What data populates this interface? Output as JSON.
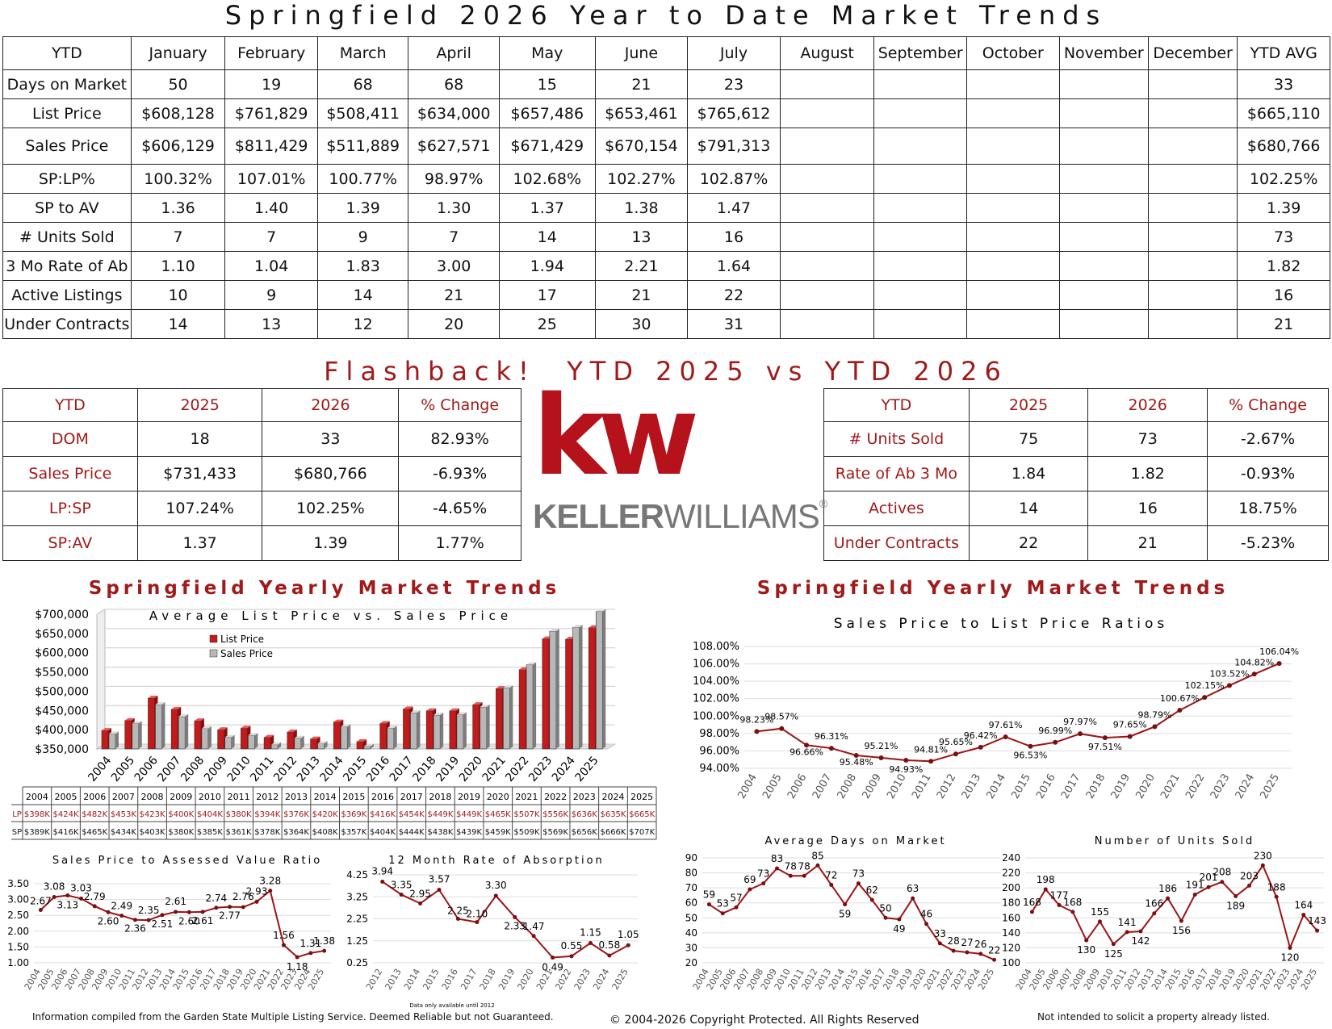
{
  "main_title": "Springfield 2026 Year to Date Market Trends",
  "ytd_table": {
    "header": [
      "YTD",
      "January",
      "February",
      "March",
      "April",
      "May",
      "June",
      "July",
      "August",
      "September",
      "October",
      "November",
      "December",
      "YTD AVG"
    ],
    "rows": [
      [
        "Days on Market",
        "50",
        "19",
        "68",
        "68",
        "15",
        "21",
        "23",
        "",
        "",
        "",
        "",
        "",
        "33"
      ],
      [
        "List Price",
        "$608,128",
        "$761,829",
        "$508,411",
        "$634,000",
        "$657,486",
        "$653,461",
        "$765,612",
        "",
        "",
        "",
        "",
        "",
        "$665,110"
      ],
      [
        "Sales Price",
        "$606,129",
        "$811,429",
        "$511,889",
        "$627,571",
        "$671,429",
        "$670,154",
        "$791,313",
        "",
        "",
        "",
        "",
        "",
        "$680,766"
      ],
      [
        "SP:LP%",
        "100.32%",
        "107.01%",
        "100.77%",
        "98.97%",
        "102.68%",
        "102.27%",
        "102.87%",
        "",
        "",
        "",
        "",
        "",
        "102.25%"
      ],
      [
        "SP to AV",
        "1.36",
        "1.40",
        "1.39",
        "1.30",
        "1.37",
        "1.38",
        "1.47",
        "",
        "",
        "",
        "",
        "",
        "1.39"
      ],
      [
        "# Units Sold",
        "7",
        "7",
        "9",
        "7",
        "14",
        "13",
        "16",
        "",
        "",
        "",
        "",
        "",
        "73"
      ],
      [
        "3 Mo Rate of Ab",
        "1.10",
        "1.04",
        "1.83",
        "3.00",
        "1.94",
        "2.21",
        "1.64",
        "",
        "",
        "",
        "",
        "",
        "1.82"
      ],
      [
        "Active Listings",
        "10",
        "9",
        "14",
        "21",
        "17",
        "21",
        "22",
        "",
        "",
        "",
        "",
        "",
        "16"
      ],
      [
        "Under Contracts",
        "14",
        "13",
        "12",
        "20",
        "25",
        "30",
        "31",
        "",
        "",
        "",
        "",
        "",
        "21"
      ]
    ]
  },
  "flashback_title": "Flashback!  YTD 2025 vs YTD 2026",
  "flash_left": {
    "header": [
      "YTD",
      "2025",
      "2026",
      "% Change"
    ],
    "rows": [
      [
        "DOM",
        "18",
        "33",
        "82.93%"
      ],
      [
        "Sales Price",
        "$731,433",
        "$680,766",
        "-6.93%"
      ],
      [
        "LP:SP",
        "107.24%",
        "102.25%",
        "-4.65%"
      ],
      [
        "SP:AV",
        "1.37",
        "1.39",
        "1.77%"
      ]
    ]
  },
  "flash_right": {
    "header": [
      "YTD",
      "2025",
      "2026",
      "% Change"
    ],
    "rows": [
      [
        "# Units Sold",
        "75",
        "73",
        "-2.67%"
      ],
      [
        "Rate of Ab 3 Mo",
        "1.84",
        "1.82",
        "-0.93%"
      ],
      [
        "Actives",
        "14",
        "16",
        "18.75%"
      ],
      [
        "Under Contracts",
        "22",
        "21",
        "-5.23%"
      ]
    ]
  },
  "logo": {
    "mark": "kw",
    "keller": "KELLER",
    "williams": "WILLIAMS",
    "reg": "®",
    "color": "#b5121b"
  },
  "colors": {
    "accent": "#a01a1a",
    "line": "#9b1515",
    "bar_gray": "#b0b0b0"
  },
  "chart_data": [
    {
      "type": "bar",
      "section_title": "Springfield Yearly Market Trends",
      "title": "Average List Price vs. Sales Price",
      "categories": [
        "2004",
        "2005",
        "2006",
        "2007",
        "2008",
        "2009",
        "2010",
        "2011",
        "2012",
        "2013",
        "2014",
        "2015",
        "2016",
        "2017",
        "2018",
        "2019",
        "2020",
        "2021",
        "2022",
        "2023",
        "2024",
        "2025"
      ],
      "series": [
        {
          "name": "List Price",
          "values": [
            398,
            424,
            482,
            453,
            423,
            400,
            404,
            380,
            394,
            376,
            420,
            369,
            416,
            454,
            449,
            449,
            465,
            507,
            556,
            636,
            635,
            665
          ]
        },
        {
          "name": "Sales Price",
          "values": [
            389,
            416,
            465,
            434,
            403,
            380,
            385,
            361,
            378,
            364,
            408,
            357,
            404,
            444,
            438,
            439,
            459,
            509,
            569,
            656,
            666,
            707
          ]
        }
      ],
      "yticks": [
        "$350,000",
        "$400,000",
        "$450,000",
        "$500,000",
        "$550,000",
        "$600,000",
        "$650,000",
        "$700,000"
      ],
      "ylim": [
        350,
        700
      ],
      "legend": "top-left",
      "table_rows": [
        {
          "label": "LP",
          "values": [
            "$398K",
            "$424K",
            "$482K",
            "$453K",
            "$423K",
            "$400K",
            "$404K",
            "$380K",
            "$394K",
            "$376K",
            "$420K",
            "$369K",
            "$416K",
            "$454K",
            "$449K",
            "$449K",
            "$465K",
            "$507K",
            "$556K",
            "$636K",
            "$635K",
            "$665K"
          ]
        },
        {
          "label": "SP",
          "values": [
            "$389K",
            "$416K",
            "$465K",
            "$434K",
            "$403K",
            "$380K",
            "$385K",
            "$361K",
            "$378K",
            "$364K",
            "$408K",
            "$357K",
            "$404K",
            "$444K",
            "$438K",
            "$439K",
            "$459K",
            "$509K",
            "$569K",
            "$656K",
            "$666K",
            "$707K"
          ]
        }
      ]
    },
    {
      "type": "line",
      "section_title": "Springfield Yearly Market Trends",
      "title": "Sales Price to List Price Ratios",
      "x": [
        "2004",
        "2005",
        "2006",
        "2007",
        "2008",
        "2009",
        "2010",
        "2011",
        "2012",
        "2013",
        "2014",
        "2015",
        "2016",
        "2017",
        "2018",
        "2019",
        "2020",
        "2021",
        "2022",
        "2023",
        "2024",
        "2025"
      ],
      "values": [
        98.23,
        98.57,
        96.66,
        96.31,
        95.48,
        95.21,
        94.93,
        94.81,
        95.65,
        96.42,
        97.61,
        96.53,
        96.99,
        97.97,
        97.51,
        97.65,
        98.79,
        100.67,
        102.15,
        103.52,
        104.82,
        106.04
      ],
      "labels": [
        "98.23%",
        "98.57%",
        "96.66%",
        "96.31%",
        "95.48%",
        "95.21%",
        "94.93%",
        "94.81%",
        "95.65%",
        "96.42%",
        "97.61%",
        "96.53%",
        "96.99%",
        "97.97%",
        "97.51%",
        "97.65%",
        "98.79%",
        "100.67%",
        "102.15%",
        "103.52%",
        "104.82%",
        "106.04%"
      ],
      "yticks": [
        "94.00%",
        "96.00%",
        "98.00%",
        "100.00%",
        "102.00%",
        "104.00%",
        "106.00%",
        "108.00%"
      ],
      "ylim": [
        94,
        108
      ]
    },
    {
      "type": "line",
      "title": "Sales Price to Assessed Value Ratio",
      "x": [
        "2004",
        "2005",
        "2006",
        "2007",
        "2008",
        "2009",
        "2010",
        "2011",
        "2012",
        "2013",
        "2014",
        "2015",
        "2016",
        "2017",
        "2018",
        "2019",
        "2020",
        "2021",
        "2022",
        "2023",
        "2024",
        "2025"
      ],
      "values": [
        2.67,
        3.08,
        3.13,
        3.03,
        2.79,
        2.6,
        2.49,
        2.36,
        2.35,
        2.51,
        2.61,
        2.6,
        2.61,
        2.74,
        2.77,
        2.76,
        2.93,
        3.28,
        1.56,
        1.18,
        1.31,
        1.38
      ],
      "labels": [
        "2.67",
        "3.08",
        "3.13",
        "3.03",
        "2.79",
        "2.60",
        "2.49",
        "2.36",
        "2.35",
        "2.51",
        "2.61",
        "2.60",
        "2.61",
        "2.74",
        "2.77",
        "2.76",
        "2.93",
        "3.28",
        "1.56",
        "1.18",
        "1.31",
        "1.38"
      ],
      "yticks": [
        "1.00",
        "1.50",
        "2.00",
        "2.50",
        "3.00",
        "3.50"
      ],
      "ylim": [
        1,
        3.5
      ]
    },
    {
      "type": "line",
      "title": "12 Month Rate of Absorption",
      "note": "Data only available until 2012",
      "x": [
        "2012",
        "2013",
        "2014",
        "2015",
        "2016",
        "2017",
        "2018",
        "2019",
        "2020",
        "2021",
        "2022",
        "2023",
        "2024",
        "2025"
      ],
      "values": [
        3.94,
        3.35,
        2.95,
        3.57,
        2.25,
        2.1,
        3.3,
        2.33,
        1.47,
        0.49,
        0.55,
        1.15,
        0.58,
        1.05
      ],
      "labels": [
        "3.94",
        "3.35",
        "2.95",
        "3.57",
        "2.25",
        "2.10",
        "3.30",
        "2.33",
        "1.47",
        "0.49",
        "0.55",
        "1.15",
        "0.58",
        "1.05"
      ],
      "yticks": [
        "0.25",
        "1.25",
        "2.25",
        "3.25",
        "4.25"
      ],
      "ylim": [
        0.25,
        4.25
      ]
    },
    {
      "type": "line",
      "title": "Average Days on Market",
      "x": [
        "2004",
        "2005",
        "2006",
        "2007",
        "2008",
        "2009",
        "2010",
        "2011",
        "2012",
        "2013",
        "2014",
        "2015",
        "2016",
        "2017",
        "2018",
        "2019",
        "2020",
        "2021",
        "2022",
        "2023",
        "2024",
        "2025"
      ],
      "values": [
        59,
        53,
        57,
        69,
        73,
        83,
        78,
        78,
        85,
        72,
        59,
        73,
        62,
        50,
        49,
        63,
        46,
        33,
        28,
        27,
        26,
        22
      ],
      "labels": [
        "59",
        "53",
        "57",
        "69",
        "73",
        "83",
        "78",
        "78",
        "85",
        "72",
        "59",
        "73",
        "62",
        "50",
        "49",
        "63",
        "46",
        "33",
        "28",
        "27",
        "26",
        "22"
      ],
      "yticks": [
        "20",
        "30",
        "40",
        "50",
        "60",
        "70",
        "80",
        "90"
      ],
      "ylim": [
        20,
        90
      ]
    },
    {
      "type": "line",
      "title": "Number of Units Sold",
      "x": [
        "2004",
        "2005",
        "2006",
        "2007",
        "2008",
        "2009",
        "2010",
        "2011",
        "2012",
        "2013",
        "2014",
        "2015",
        "2016",
        "2017",
        "2018",
        "2019",
        "2020",
        "2021",
        "2022",
        "2023",
        "2024",
        "2025"
      ],
      "values": [
        168,
        198,
        177,
        168,
        130,
        155,
        125,
        141,
        142,
        166,
        186,
        156,
        191,
        201,
        208,
        189,
        203,
        230,
        188,
        120,
        164,
        143
      ],
      "labels": [
        "168",
        "198",
        "177",
        "168",
        "130",
        "155",
        "125",
        "141",
        "142",
        "166",
        "186",
        "156",
        "191",
        "201",
        "208",
        "189",
        "203",
        "230",
        "188",
        "120",
        "164",
        "143"
      ],
      "yticks": [
        "100",
        "120",
        "140",
        "160",
        "180",
        "200",
        "220",
        "240"
      ],
      "ylim": [
        100,
        240
      ]
    }
  ],
  "footer": {
    "left": "Information compiled from the Garden State Multiple Listing Service.  Deemed Reliable but not Guaranteed.",
    "center": "© 2004-2026 Copyright Protected.  All Rights Reserved",
    "right": "Not intended to solicit a property already listed."
  }
}
